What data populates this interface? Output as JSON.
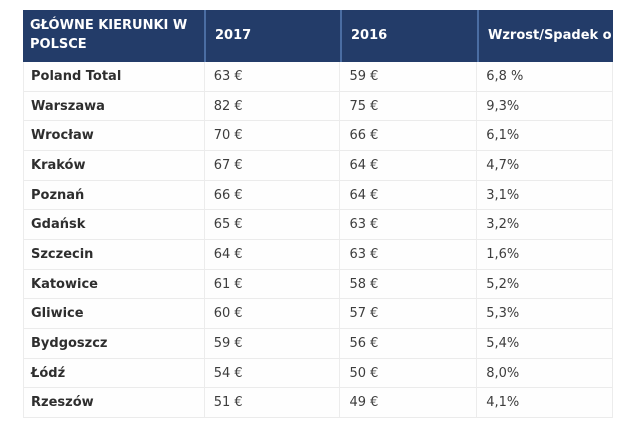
{
  "colors": {
    "header_bg": "#233c69",
    "header_separator": "#4a6da3",
    "header_text": "#ffffff",
    "body_text": "#3d3d3d",
    "row_border": "#ebebeb"
  },
  "chart_data": {
    "type": "table",
    "title": "",
    "columns": [
      {
        "label": "GŁÓWNE KIERUNKI W POLSCE"
      },
      {
        "label": "2017"
      },
      {
        "label": "2016"
      },
      {
        "label": "Wzrost/Spadek o"
      }
    ],
    "rows": [
      {
        "name": "Poland Total",
        "y2017": "63 €",
        "y2016": "59 €",
        "change": "6,8 %"
      },
      {
        "name": "Warszawa",
        "y2017": "82 €",
        "y2016": "75 €",
        "change": "9,3%"
      },
      {
        "name": "Wrocław",
        "y2017": "70 €",
        "y2016": "66 €",
        "change": "6,1%"
      },
      {
        "name": "Kraków",
        "y2017": "67 €",
        "y2016": "64 €",
        "change": "4,7%"
      },
      {
        "name": "Poznań",
        "y2017": "66 €",
        "y2016": "64 €",
        "change": "3,1%"
      },
      {
        "name": "Gdańsk",
        "y2017": "65 €",
        "y2016": "63 €",
        "change": "3,2%"
      },
      {
        "name": "Szczecin",
        "y2017": "64 €",
        "y2016": "63 €",
        "change": "1,6%"
      },
      {
        "name": "Katowice",
        "y2017": "61 €",
        "y2016": "58 €",
        "change": "5,2%"
      },
      {
        "name": "Gliwice",
        "y2017": "60 €",
        "y2016": "57 €",
        "change": "5,3%"
      },
      {
        "name": "Bydgoszcz",
        "y2017": "59 €",
        "y2016": "56 €",
        "change": "5,4%"
      },
      {
        "name": "Łódź",
        "y2017": "54 €",
        "y2016": "50 €",
        "change": "8,0%"
      },
      {
        "name": "Rzeszów",
        "y2017": "51 €",
        "y2016": "49 €",
        "change": "4,1%"
      }
    ]
  }
}
